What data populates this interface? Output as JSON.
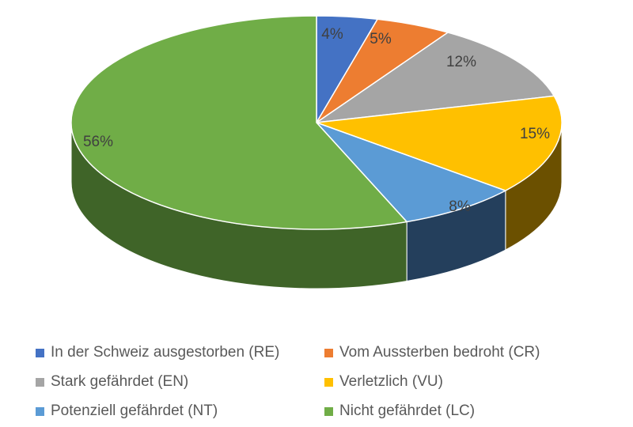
{
  "chart_data": {
    "type": "pie",
    "style": "3d",
    "start": "12 o'clock, clockwise",
    "categories": [
      "In der Schweiz ausgestorben (RE)",
      "Vom Aussterben bedroht (CR)",
      "Stark gefährdet (EN)",
      "Verletzlich (VU)",
      "Potenziell gefährdet (NT)",
      "Nicht gefährdet (LC)"
    ],
    "values": [
      4,
      5,
      12,
      15,
      8,
      56
    ],
    "labels": [
      "4%",
      "5%",
      "12%",
      "15%",
      "8%",
      "56%"
    ],
    "colors": [
      "#4472C4",
      "#ED7D31",
      "#A5A5A5",
      "#FFC000",
      "#5B9BD5",
      "#70AD47"
    ],
    "side_colors": [
      "#2c4a80",
      "#9a511f",
      "#6b6b6b",
      "#6b5000",
      "#243f5c",
      "#3f6428"
    ],
    "legend_position": "bottom"
  }
}
